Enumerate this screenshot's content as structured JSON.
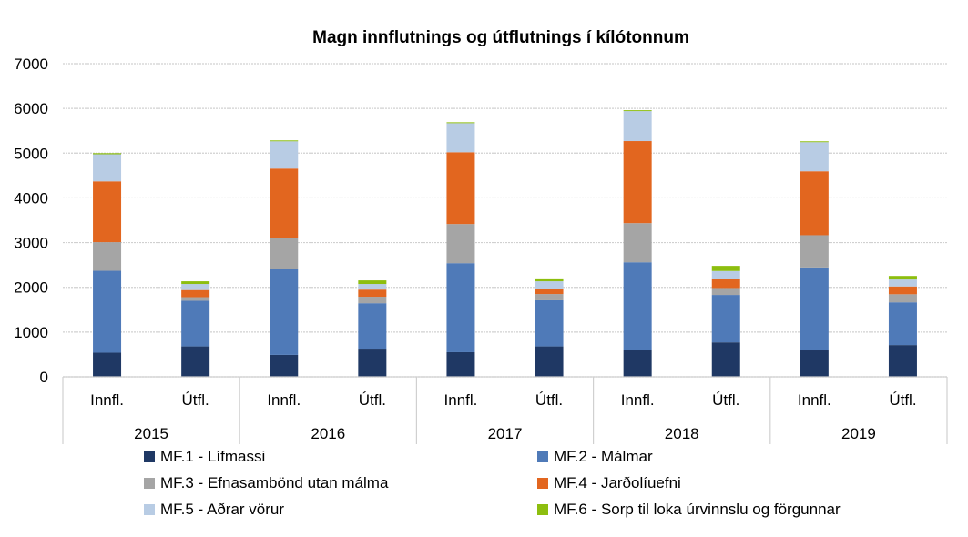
{
  "chart_data": {
    "type": "bar",
    "stacked": true,
    "title": "Magn innflutnings og útflutnings í kílótonnum",
    "xlabel": "",
    "ylabel": "",
    "ylim": [
      0,
      7000
    ],
    "yticks": [
      0,
      1000,
      2000,
      3000,
      4000,
      5000,
      6000,
      7000
    ],
    "grid": true,
    "legend_position": "bottom",
    "groups": [
      "2015",
      "2016",
      "2017",
      "2018",
      "2019"
    ],
    "subcategories": [
      "Innfl.",
      "Útfl."
    ],
    "categories": [
      "2015 Innfl.",
      "2015 Útfl.",
      "2016 Innfl.",
      "2016 Útfl.",
      "2017 Innfl.",
      "2017 Útfl.",
      "2018 Innfl.",
      "2018 Útfl.",
      "2019 Innfl.",
      "2019 Útfl."
    ],
    "series": [
      {
        "name": "MF.1 - Lífmassi",
        "color": "#1F3864",
        "values": [
          540,
          680,
          490,
          630,
          550,
          680,
          610,
          770,
          590,
          710
        ]
      },
      {
        "name": "MF.2 - Málmar",
        "color": "#4F7AB8",
        "values": [
          1830,
          1020,
          1915,
          1015,
          1990,
          1030,
          1950,
          1060,
          1855,
          955
        ]
      },
      {
        "name": "MF.3 - Efnasambönd utan málma",
        "color": "#A5A5A5",
        "values": [
          640,
          80,
          705,
          145,
          875,
          140,
          875,
          155,
          720,
          180
        ]
      },
      {
        "name": "MF.4 - Jarðolíuefni",
        "color": "#E2661F",
        "values": [
          1360,
          160,
          1545,
          160,
          1605,
          120,
          1835,
          210,
          1430,
          175
        ]
      },
      {
        "name": "MF.5 - Aðrar vörur",
        "color": "#B8CCE4",
        "values": [
          605,
          135,
          610,
          125,
          650,
          165,
          670,
          170,
          650,
          155
        ]
      },
      {
        "name": "MF.6 - Sorp til loka úrvinnslu og förgunnar",
        "color": "#8DBE0F",
        "values": [
          25,
          60,
          20,
          80,
          20,
          65,
          20,
          115,
          20,
          80
        ]
      }
    ]
  }
}
